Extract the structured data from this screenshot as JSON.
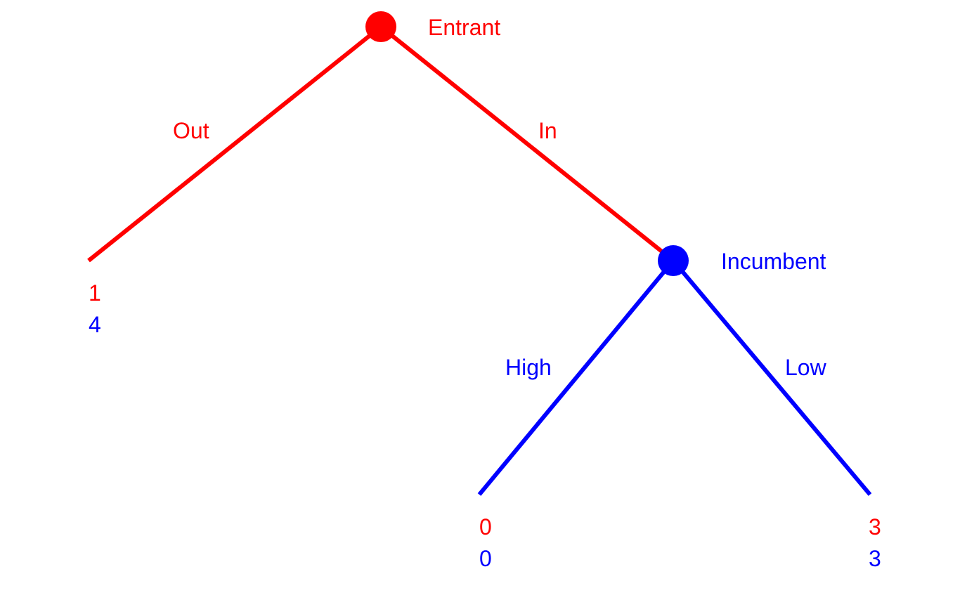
{
  "colors": {
    "player1": "#ff0000",
    "player2": "#0000ff",
    "background": "#ffffff"
  },
  "players": {
    "entrant": "Entrant",
    "incumbent": "Incumbent"
  },
  "actions": {
    "out": "Out",
    "in": "In",
    "high": "High",
    "low": "Low"
  },
  "payoffs": {
    "out": {
      "entrant": "1",
      "incumbent": "4"
    },
    "high": {
      "entrant": "0",
      "incumbent": "0"
    },
    "low": {
      "entrant": "3",
      "incumbent": "3"
    }
  }
}
